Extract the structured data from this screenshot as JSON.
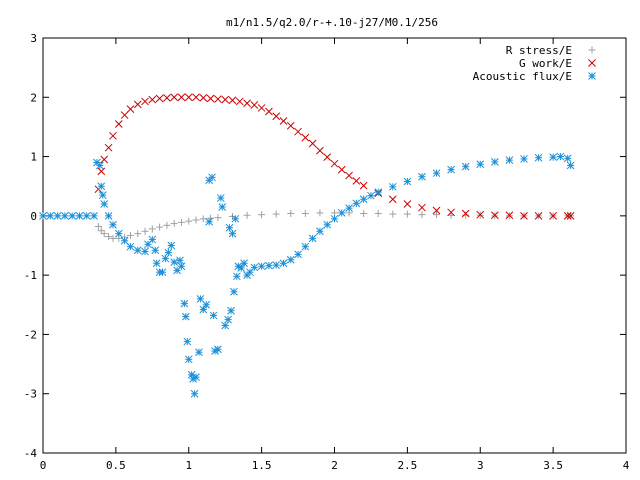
{
  "chart_data": {
    "type": "scatter",
    "title": "m1/n1.5/q2.0/r-+.10-j27/M0.1/256",
    "xlabel": "",
    "ylabel": "",
    "xlim": [
      0,
      4
    ],
    "ylim": [
      -4,
      3
    ],
    "xticks": [
      "0",
      "0.5",
      "1",
      "1.5",
      "2",
      "2.5",
      "3",
      "3.5",
      "4"
    ],
    "yticks": [
      "3",
      "2",
      "1",
      "0",
      "-1",
      "-2",
      "-3",
      "-4"
    ],
    "grid": false,
    "legend_position": "top-right",
    "series": [
      {
        "name": "R stress/E",
        "marker": "plus",
        "color": "#a0a0a0",
        "points": [
          [
            0.38,
            -0.18
          ],
          [
            0.4,
            -0.25
          ],
          [
            0.42,
            -0.3
          ],
          [
            0.45,
            -0.35
          ],
          [
            0.48,
            -0.38
          ],
          [
            0.52,
            -0.38
          ],
          [
            0.56,
            -0.36
          ],
          [
            0.6,
            -0.33
          ],
          [
            0.65,
            -0.3
          ],
          [
            0.7,
            -0.26
          ],
          [
            0.75,
            -0.22
          ],
          [
            0.8,
            -0.19
          ],
          [
            0.85,
            -0.16
          ],
          [
            0.9,
            -0.13
          ],
          [
            0.95,
            -0.11
          ],
          [
            1.0,
            -0.09
          ],
          [
            1.05,
            -0.07
          ],
          [
            1.1,
            -0.05
          ],
          [
            1.15,
            -0.04
          ],
          [
            1.2,
            -0.03
          ],
          [
            1.3,
            -0.01
          ],
          [
            1.4,
            0.01
          ],
          [
            1.5,
            0.02
          ],
          [
            1.6,
            0.03
          ],
          [
            1.7,
            0.04
          ],
          [
            1.8,
            0.04
          ],
          [
            1.9,
            0.05
          ],
          [
            2.0,
            0.05
          ],
          [
            2.1,
            0.05
          ],
          [
            2.2,
            0.04
          ],
          [
            2.3,
            0.04
          ],
          [
            2.4,
            0.03
          ],
          [
            2.5,
            0.03
          ],
          [
            2.6,
            0.02
          ],
          [
            2.7,
            0.02
          ],
          [
            2.8,
            0.01
          ],
          [
            2.9,
            0.01
          ],
          [
            3.0,
            0.01
          ],
          [
            3.1,
            0.0
          ],
          [
            3.2,
            0.0
          ],
          [
            3.3,
            0.0
          ],
          [
            3.4,
            0.0
          ],
          [
            3.5,
            0.0
          ],
          [
            3.6,
            0.0
          ],
          [
            3.62,
            0.0
          ]
        ]
      },
      {
        "name": "G work/E",
        "marker": "cross",
        "color": "#cc0000",
        "points": [
          [
            0.38,
            0.45
          ],
          [
            0.4,
            0.75
          ],
          [
            0.42,
            0.95
          ],
          [
            0.45,
            1.15
          ],
          [
            0.48,
            1.35
          ],
          [
            0.52,
            1.55
          ],
          [
            0.56,
            1.7
          ],
          [
            0.6,
            1.8
          ],
          [
            0.65,
            1.88
          ],
          [
            0.7,
            1.93
          ],
          [
            0.75,
            1.96
          ],
          [
            0.8,
            1.98
          ],
          [
            0.85,
            1.99
          ],
          [
            0.9,
            2.0
          ],
          [
            0.95,
            2.0
          ],
          [
            1.0,
            2.0
          ],
          [
            1.05,
            2.0
          ],
          [
            1.1,
            1.99
          ],
          [
            1.15,
            1.98
          ],
          [
            1.2,
            1.97
          ],
          [
            1.25,
            1.96
          ],
          [
            1.3,
            1.95
          ],
          [
            1.35,
            1.93
          ],
          [
            1.4,
            1.9
          ],
          [
            1.45,
            1.87
          ],
          [
            1.5,
            1.82
          ],
          [
            1.55,
            1.76
          ],
          [
            1.6,
            1.68
          ],
          [
            1.65,
            1.6
          ],
          [
            1.7,
            1.52
          ],
          [
            1.75,
            1.42
          ],
          [
            1.8,
            1.32
          ],
          [
            1.85,
            1.22
          ],
          [
            1.9,
            1.1
          ],
          [
            1.95,
            0.99
          ],
          [
            2.0,
            0.88
          ],
          [
            2.05,
            0.78
          ],
          [
            2.1,
            0.68
          ],
          [
            2.15,
            0.59
          ],
          [
            2.2,
            0.51
          ],
          [
            2.3,
            0.38
          ],
          [
            2.4,
            0.28
          ],
          [
            2.5,
            0.2
          ],
          [
            2.6,
            0.14
          ],
          [
            2.7,
            0.09
          ],
          [
            2.8,
            0.06
          ],
          [
            2.9,
            0.04
          ],
          [
            3.0,
            0.02
          ],
          [
            3.1,
            0.01
          ],
          [
            3.2,
            0.01
          ],
          [
            3.3,
            0.0
          ],
          [
            3.4,
            0.0
          ],
          [
            3.5,
            0.0
          ],
          [
            3.6,
            0.0
          ],
          [
            3.62,
            0.0
          ]
        ]
      },
      {
        "name": "Acoustic flux/E",
        "marker": "star",
        "color": "#1a8fd8",
        "points": [
          [
            0.0,
            0.0
          ],
          [
            0.05,
            0.0
          ],
          [
            0.1,
            0.0
          ],
          [
            0.15,
            0.0
          ],
          [
            0.2,
            0.0
          ],
          [
            0.25,
            0.0
          ],
          [
            0.3,
            0.0
          ],
          [
            0.35,
            0.0
          ],
          [
            0.37,
            0.9
          ],
          [
            0.39,
            0.85
          ],
          [
            0.4,
            0.5
          ],
          [
            0.41,
            0.35
          ],
          [
            0.42,
            0.2
          ],
          [
            0.45,
            0.0
          ],
          [
            0.48,
            -0.15
          ],
          [
            0.52,
            -0.3
          ],
          [
            0.56,
            -0.42
          ],
          [
            0.6,
            -0.52
          ],
          [
            0.65,
            -0.58
          ],
          [
            0.7,
            -0.6
          ],
          [
            0.72,
            -0.48
          ],
          [
            0.75,
            -0.4
          ],
          [
            0.77,
            -0.58
          ],
          [
            0.78,
            -0.8
          ],
          [
            0.8,
            -0.95
          ],
          [
            0.82,
            -0.95
          ],
          [
            0.84,
            -0.72
          ],
          [
            0.86,
            -0.62
          ],
          [
            0.88,
            -0.5
          ],
          [
            0.9,
            -0.78
          ],
          [
            0.92,
            -0.92
          ],
          [
            0.94,
            -0.75
          ],
          [
            0.95,
            -0.85
          ],
          [
            0.97,
            -1.48
          ],
          [
            0.98,
            -1.7
          ],
          [
            0.99,
            -2.12
          ],
          [
            1.0,
            -2.42
          ],
          [
            1.02,
            -2.68
          ],
          [
            1.03,
            -2.75
          ],
          [
            1.04,
            -3.0
          ],
          [
            1.05,
            -2.72
          ],
          [
            1.07,
            -2.3
          ],
          [
            1.08,
            -1.4
          ],
          [
            1.1,
            -1.58
          ],
          [
            1.12,
            -1.5
          ],
          [
            1.14,
            -0.1
          ],
          [
            1.14,
            0.6
          ],
          [
            1.16,
            0.65
          ],
          [
            1.17,
            -1.68
          ],
          [
            1.18,
            -2.28
          ],
          [
            1.2,
            -2.25
          ],
          [
            1.22,
            0.3
          ],
          [
            1.23,
            0.15
          ],
          [
            1.25,
            -1.85
          ],
          [
            1.27,
            -1.75
          ],
          [
            1.28,
            -0.2
          ],
          [
            1.29,
            -1.6
          ],
          [
            1.3,
            -0.3
          ],
          [
            1.31,
            -1.28
          ],
          [
            1.32,
            -0.05
          ],
          [
            1.33,
            -1.02
          ],
          [
            1.34,
            -0.85
          ],
          [
            1.36,
            -0.88
          ],
          [
            1.38,
            -0.8
          ],
          [
            1.4,
            -1.0
          ],
          [
            1.42,
            -0.95
          ],
          [
            1.45,
            -0.87
          ],
          [
            1.5,
            -0.85
          ],
          [
            1.55,
            -0.84
          ],
          [
            1.6,
            -0.83
          ],
          [
            1.65,
            -0.8
          ],
          [
            1.7,
            -0.74
          ],
          [
            1.75,
            -0.65
          ],
          [
            1.8,
            -0.52
          ],
          [
            1.85,
            -0.38
          ],
          [
            1.9,
            -0.26
          ],
          [
            1.95,
            -0.15
          ],
          [
            2.0,
            -0.05
          ],
          [
            2.05,
            0.05
          ],
          [
            2.1,
            0.13
          ],
          [
            2.15,
            0.21
          ],
          [
            2.2,
            0.28
          ],
          [
            2.25,
            0.34
          ],
          [
            2.3,
            0.4
          ],
          [
            2.4,
            0.49
          ],
          [
            2.5,
            0.58
          ],
          [
            2.6,
            0.66
          ],
          [
            2.7,
            0.72
          ],
          [
            2.8,
            0.78
          ],
          [
            2.9,
            0.83
          ],
          [
            3.0,
            0.87
          ],
          [
            3.1,
            0.91
          ],
          [
            3.2,
            0.94
          ],
          [
            3.3,
            0.96
          ],
          [
            3.4,
            0.98
          ],
          [
            3.5,
            0.99
          ],
          [
            3.55,
            1.0
          ],
          [
            3.6,
            0.97
          ],
          [
            3.62,
            0.85
          ]
        ]
      }
    ]
  }
}
